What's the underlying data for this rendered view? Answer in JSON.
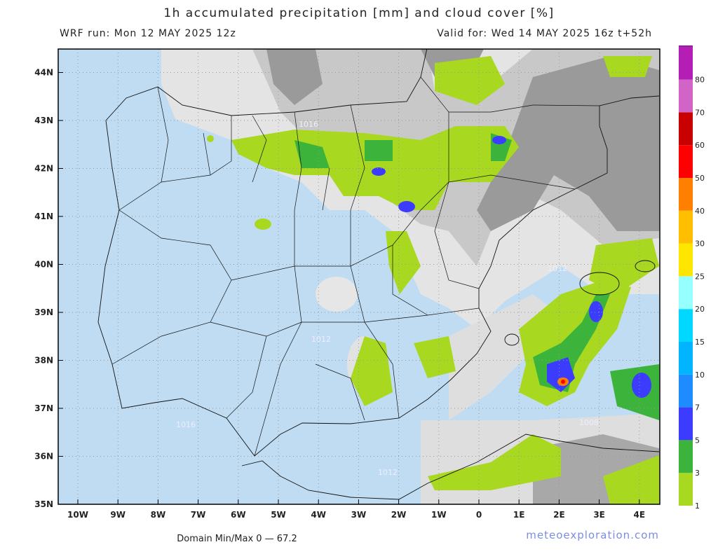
{
  "header": {
    "title": "1h accumulated precipitation [mm] and cloud cover [%]",
    "run": "WRF run: Mon 12 MAY 2025 12z",
    "valid": "Valid for: Wed 14 MAY 2025 16z  t+52h"
  },
  "axes": {
    "latitudes": [
      "35N",
      "36N",
      "37N",
      "38N",
      "39N",
      "40N",
      "41N",
      "42N",
      "43N",
      "44N"
    ],
    "longitudes": [
      "10W",
      "9W",
      "8W",
      "7W",
      "6W",
      "5W",
      "4W",
      "3W",
      "2W",
      "1W",
      "0",
      "1E",
      "2E",
      "3E",
      "4E"
    ]
  },
  "isobars": [
    "1016",
    "1012",
    "1012",
    "1016",
    "1012",
    "1008"
  ],
  "colorbar": {
    "levels": [
      {
        "label": "1",
        "color": "#a8d820"
      },
      {
        "label": "3",
        "color": "#3cb43c"
      },
      {
        "label": "5",
        "color": "#3c3cff"
      },
      {
        "label": "7",
        "color": "#1e8cff"
      },
      {
        "label": "10",
        "color": "#00b4ff"
      },
      {
        "label": "15",
        "color": "#00d8ff"
      },
      {
        "label": "20",
        "color": "#96ffff"
      },
      {
        "label": "25",
        "color": "#ffe600"
      },
      {
        "label": "30",
        "color": "#ffbe00"
      },
      {
        "label": "40",
        "color": "#ff8000"
      },
      {
        "label": "50",
        "color": "#ff0000"
      },
      {
        "label": "60",
        "color": "#c80000"
      },
      {
        "label": "70",
        "color": "#d264c8"
      },
      {
        "label": "80",
        "color": "#b41eb4"
      }
    ],
    "top_color": "#8c00a0"
  },
  "footer": {
    "domain": "Domain Min/Max 0 — 67.2",
    "site": "meteoexploration.com"
  }
}
